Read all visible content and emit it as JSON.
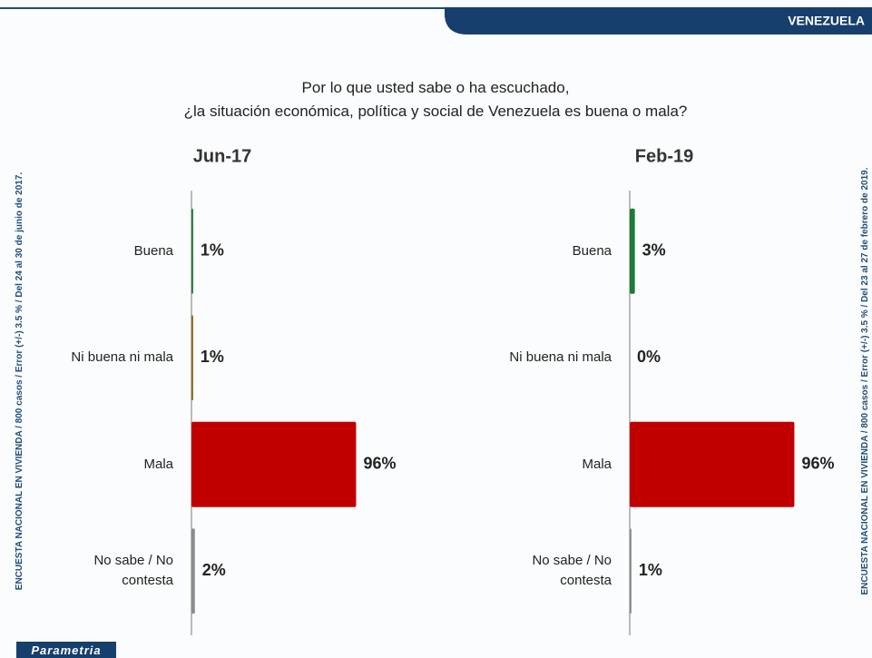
{
  "header": "VENEZUELA",
  "question": [
    "Por lo que usted sabe o ha escuchado,",
    "¿la situación económica, política y social de Venezuela es buena o mala?"
  ],
  "side_notes": [
    "ENCUESTA NACIONAL EN VIVIENDA / 800 casos / Error (+/-) 3.5 % / Del 24 al 30 de junio de 2017.",
    "ENCUESTA NACIONAL EN VIVIENDA / 800 casos / Error (+/-) 3.5 % / Del 23 al 27 de febrero de 2019."
  ],
  "logo": "Parametria",
  "chart_data": [
    {
      "type": "bar",
      "orientation": "horizontal",
      "title": "Jun-17",
      "categories": [
        "Buena",
        "Ni buena ni mala",
        "Mala",
        "No sabe / No contesta"
      ],
      "values": [
        1,
        1,
        96,
        2
      ],
      "value_labels": [
        "1%",
        "1%",
        "96%",
        "2%"
      ],
      "colors": [
        "#1e7b3a",
        "#8b6914",
        "#c00000",
        "#8c8c8c"
      ],
      "xlim": [
        0,
        100
      ]
    },
    {
      "type": "bar",
      "orientation": "horizontal",
      "title": "Feb-19",
      "categories": [
        "Buena",
        "Ni buena ni mala",
        "Mala",
        "No sabe / No contesta"
      ],
      "values": [
        3,
        0,
        96,
        1
      ],
      "value_labels": [
        "3%",
        "0%",
        "96%",
        "1%"
      ],
      "colors": [
        "#1e7b3a",
        "#8b6914",
        "#c00000",
        "#8c8c8c"
      ],
      "xlim": [
        0,
        100
      ]
    }
  ]
}
